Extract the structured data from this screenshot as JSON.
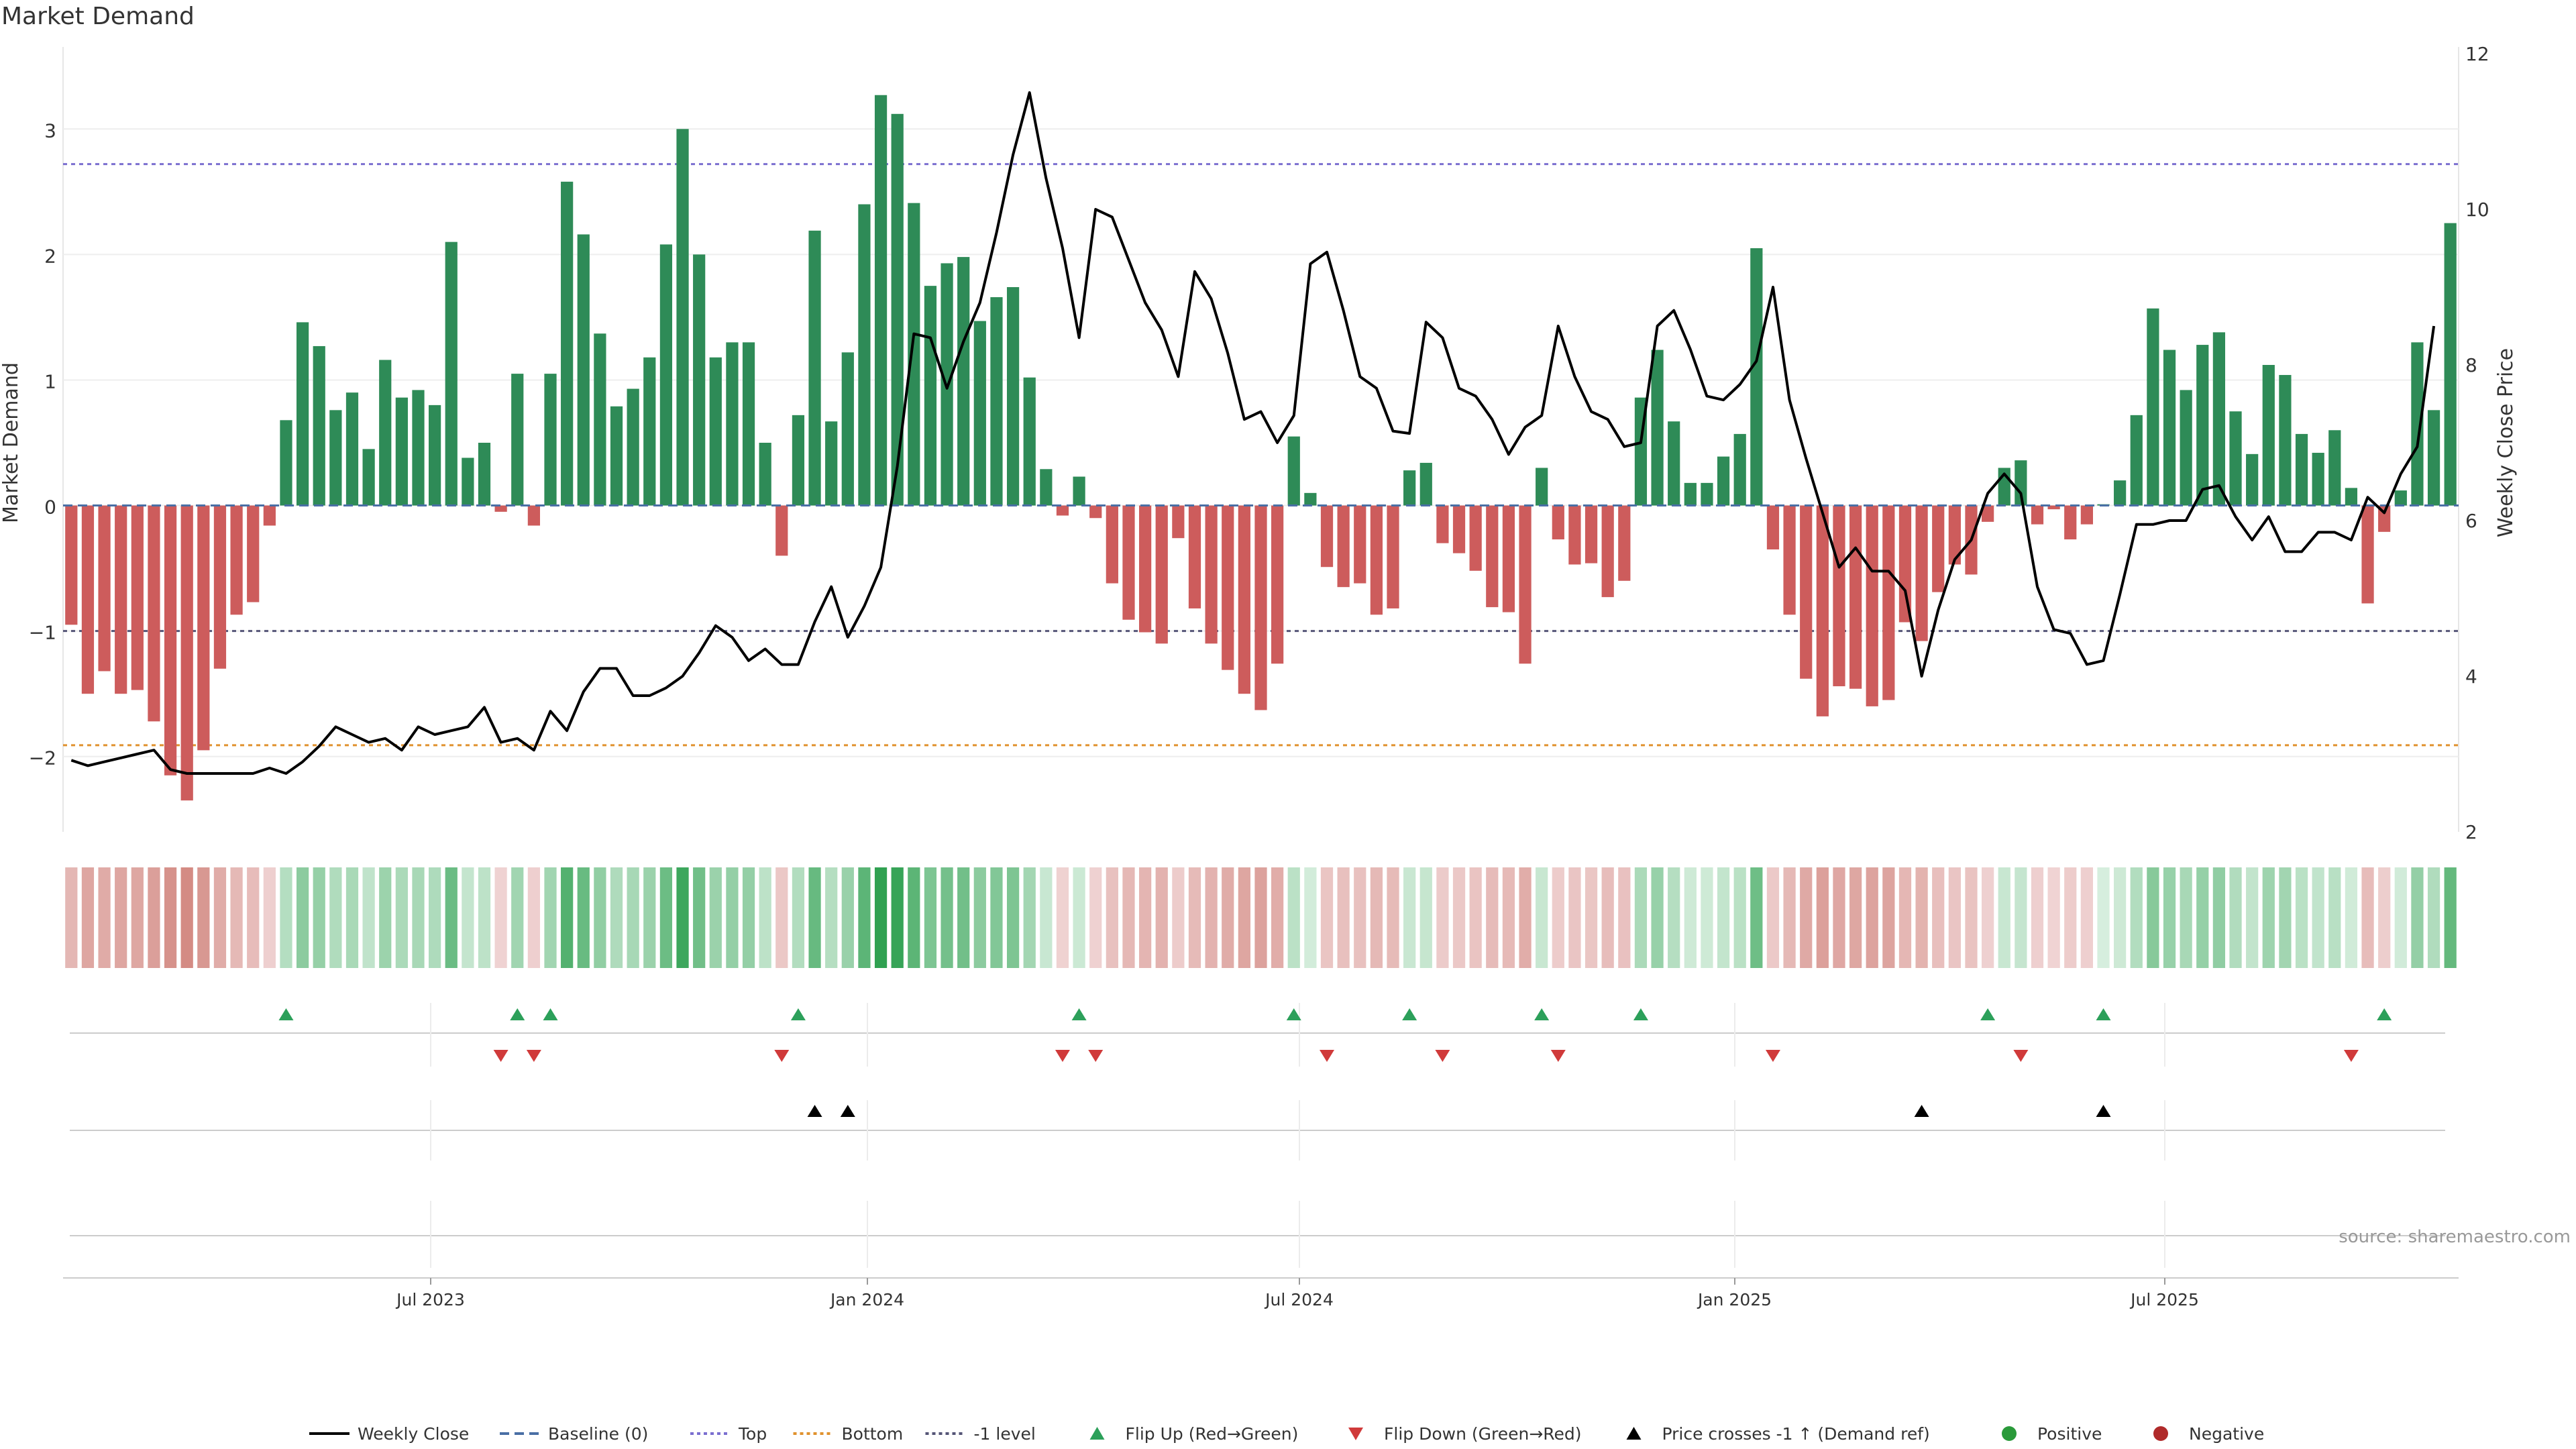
{
  "chart_data": {
    "type": "bar",
    "title": "Market Demand",
    "ylabel": "Market Demand",
    "y2label": "Weekly Close Price",
    "ylim": [
      -2.6,
      3.6
    ],
    "y2lim": [
      2,
      12
    ],
    "y_ticks": [
      "3",
      "2",
      "1",
      "0",
      "−1",
      "−2"
    ],
    "y2_ticks": [
      "12",
      "10",
      "8",
      "6",
      "4",
      "2"
    ],
    "x_ticks": [
      "Jul 2023",
      "Jan 2024",
      "Jul 2024",
      "Jan 2025",
      "Jul 2025"
    ],
    "reference_lines": {
      "baseline": 0,
      "top": 2.72,
      "bottom": -1.91,
      "minus_one": -1
    },
    "grid": true,
    "source_label": "source: sharemaestro.com",
    "demand": [
      -0.95,
      -1.5,
      -1.32,
      -1.5,
      -1.47,
      -1.72,
      -2.15,
      -2.35,
      -1.95,
      -1.3,
      -0.87,
      -0.77,
      -0.16,
      0.68,
      1.46,
      1.27,
      0.76,
      0.9,
      0.45,
      1.16,
      0.86,
      0.92,
      0.8,
      2.1,
      0.38,
      0.5,
      -0.05,
      1.05,
      -0.16,
      1.05,
      2.58,
      2.16,
      1.37,
      0.79,
      0.93,
      1.18,
      2.08,
      3.0,
      2.0,
      1.18,
      1.3,
      1.3,
      0.5,
      -0.4,
      0.72,
      2.19,
      0.67,
      1.22,
      2.4,
      3.27,
      3.12,
      2.41,
      1.75,
      1.93,
      1.98,
      1.47,
      1.66,
      1.74,
      1.02,
      0.29,
      -0.08,
      0.23,
      -0.1,
      -0.62,
      -0.91,
      -1.01,
      -1.1,
      -0.26,
      -0.82,
      -1.1,
      -1.31,
      -1.5,
      -1.63,
      -1.26,
      0.55,
      0.1,
      -0.49,
      -0.65,
      -0.62,
      -0.87,
      -0.82,
      0.28,
      0.34,
      -0.3,
      -0.38,
      -0.52,
      -0.81,
      -0.85,
      -1.26,
      0.3,
      -0.27,
      -0.47,
      -0.46,
      -0.73,
      -0.6,
      0.86,
      1.24,
      0.67,
      0.18,
      0.18,
      0.39,
      0.57,
      2.05,
      -0.35,
      -0.87,
      -1.38,
      -1.68,
      -1.44,
      -1.46,
      -1.6,
      -1.55,
      -0.93,
      -1.08,
      -0.69,
      -0.47,
      -0.55,
      -0.13,
      0.3,
      0.36,
      -0.15,
      -0.03,
      -0.27,
      -0.15,
      0.01,
      0.2,
      0.72,
      1.57,
      1.24,
      0.92,
      1.28,
      1.38,
      0.75,
      0.41,
      1.12,
      1.04,
      0.57,
      0.42,
      0.6,
      0.14,
      -0.78,
      -0.21,
      0.12,
      1.3,
      0.76,
      2.25
    ],
    "weekly_close": [
      2.92,
      2.85,
      2.9,
      2.95,
      3.0,
      3.05,
      2.8,
      2.75,
      2.75,
      2.75,
      2.75,
      2.75,
      2.82,
      2.75,
      2.9,
      3.1,
      3.35,
      3.25,
      3.15,
      3.2,
      3.05,
      3.35,
      3.25,
      3.3,
      3.35,
      3.6,
      3.15,
      3.2,
      3.05,
      3.55,
      3.3,
      3.8,
      4.1,
      4.1,
      3.75,
      3.75,
      3.85,
      4.0,
      4.3,
      4.65,
      4.5,
      4.2,
      4.35,
      4.15,
      4.15,
      4.7,
      5.15,
      4.5,
      4.9,
      5.4,
      6.7,
      8.4,
      8.35,
      7.7,
      8.3,
      8.8,
      9.7,
      10.7,
      11.5,
      10.4,
      9.5,
      8.35,
      10.0,
      9.9,
      9.35,
      8.8,
      8.45,
      7.85,
      9.2,
      8.85,
      8.15,
      7.3,
      7.4,
      7.0,
      7.35,
      9.3,
      9.45,
      8.7,
      7.85,
      7.7,
      7.15,
      7.12,
      8.55,
      8.35,
      7.7,
      7.6,
      7.3,
      6.85,
      7.2,
      7.35,
      8.5,
      7.85,
      7.4,
      7.3,
      6.95,
      7.0,
      8.5,
      8.7,
      8.2,
      7.6,
      7.55,
      7.75,
      8.05,
      9.0,
      7.55,
      6.8,
      6.1,
      5.4,
      5.65,
      5.35,
      5.35,
      5.1,
      4.0,
      4.85,
      5.5,
      5.75,
      6.35,
      6.6,
      6.35,
      5.15,
      4.6,
      4.55,
      4.15,
      4.2,
      5.05,
      5.95,
      5.95,
      6.0,
      6.0,
      6.4,
      6.45,
      6.05,
      5.75,
      6.05,
      5.6,
      5.6,
      5.85,
      5.85,
      5.75,
      6.3,
      6.1,
      6.6,
      6.95,
      8.5
    ],
    "flip_up_indices": [
      13,
      27,
      29,
      44,
      61,
      74,
      81,
      89,
      95,
      116,
      123,
      140
    ],
    "flip_down_indices": [
      26,
      28,
      43,
      60,
      62,
      76,
      83,
      90,
      103,
      118,
      138
    ],
    "price_cross_indices": [
      45,
      47,
      112,
      123
    ],
    "legend": [
      {
        "label": "Weekly Close",
        "color": "#000000",
        "icon": "line-solid-icon"
      },
      {
        "label": "Baseline (0)",
        "color": "#4a6fa5",
        "icon": "line-dashed-icon"
      },
      {
        "label": "Top",
        "color": "#7b6fd0",
        "icon": "line-dotted-icon"
      },
      {
        "label": "Bottom",
        "color": "#e0922e",
        "icon": "line-dotted-icon"
      },
      {
        "label": "-1 level",
        "color": "#555577",
        "icon": "line-dotted-icon"
      },
      {
        "label": "Flip Up (Red→Green)",
        "color": "#2ca05a",
        "icon": "triangle-up-icon"
      },
      {
        "label": "Flip Down (Green→Red)",
        "color": "#d03a3a",
        "icon": "triangle-down-icon"
      },
      {
        "label": "Price crosses -1 ↑ (Demand ref)",
        "color": "#000000",
        "icon": "triangle-up-icon"
      },
      {
        "label": "Positive",
        "color": "#2a9a3a",
        "icon": "dot-icon"
      },
      {
        "label": "Negative",
        "color": "#b02a2a",
        "icon": "dot-icon"
      }
    ],
    "colors": {
      "positive_bar": "#2e8b57",
      "negative_bar": "#cd5c5c",
      "price_line": "#000000"
    }
  }
}
